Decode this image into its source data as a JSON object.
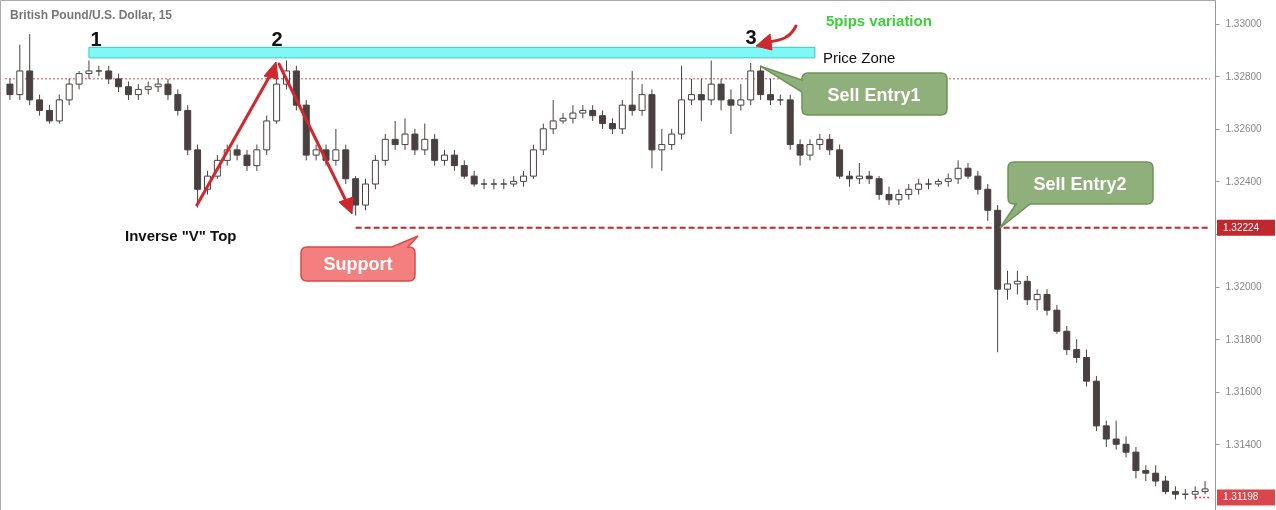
{
  "chart_data": {
    "type": "candlestick",
    "title": "British Pound/U.S. Dollar, 15",
    "categories": [
      null,
      null,
      null,
      null,
      null,
      null,
      null,
      null,
      null,
      null,
      null,
      null,
      null,
      null,
      null,
      null,
      null,
      null,
      null,
      null,
      null,
      null,
      null,
      null,
      null,
      null,
      null,
      null,
      null,
      null,
      null,
      null,
      null,
      null,
      null,
      null,
      null,
      null,
      null,
      null,
      null,
      null,
      null,
      null,
      null,
      null,
      null,
      null,
      null,
      null,
      null,
      null,
      null,
      null,
      null,
      null,
      null,
      null,
      null,
      null,
      null,
      null,
      null,
      null,
      null,
      null,
      null,
      null,
      null,
      null,
      null,
      null,
      null,
      null,
      null,
      null,
      null,
      null,
      null,
      null,
      null,
      null,
      null,
      null,
      null,
      null,
      null,
      null,
      null,
      null,
      null,
      null,
      null,
      null,
      null,
      null,
      null,
      null,
      null,
      null,
      null,
      null,
      null,
      null,
      null,
      null,
      null,
      null,
      null,
      null,
      null,
      null,
      null,
      null,
      null,
      null,
      null,
      null,
      null,
      null,
      null,
      null
    ],
    "series": [
      {
        "color": "#4a4040",
        "ohlc": [
          [
            1.3277,
            1.3279,
            1.3271,
            1.3273
          ],
          [
            1.3273,
            1.3292,
            1.3271,
            1.3282
          ],
          [
            1.3282,
            1.3296,
            1.3269,
            1.3271
          ],
          [
            1.3271,
            1.3273,
            1.3265,
            1.3267
          ],
          [
            1.3267,
            1.3269,
            1.3262,
            1.3263
          ],
          [
            1.3263,
            1.3273,
            1.3262,
            1.3271
          ],
          [
            1.3271,
            1.3279,
            1.3269,
            1.3277
          ],
          [
            1.3277,
            1.3282,
            1.3275,
            1.3281
          ],
          [
            1.3281,
            1.3286,
            1.3279,
            1.3282
          ],
          [
            1.3282,
            1.3284,
            1.328,
            1.3282
          ],
          [
            1.3282,
            1.3284,
            1.3277,
            1.3279
          ],
          [
            1.3279,
            1.3281,
            1.3274,
            1.3276
          ],
          [
            1.3276,
            1.3278,
            1.3271,
            1.3273
          ],
          [
            1.3273,
            1.3277,
            1.3271,
            1.3275
          ],
          [
            1.3275,
            1.3278,
            1.3273,
            1.3276
          ],
          [
            1.3276,
            1.3279,
            1.3274,
            1.3277
          ],
          [
            1.3277,
            1.3279,
            1.3271,
            1.3273
          ],
          [
            1.3273,
            1.3275,
            1.3265,
            1.3267
          ],
          [
            1.3267,
            1.3269,
            1.325,
            1.3252
          ],
          [
            1.3252,
            1.3254,
            1.323,
            1.3237
          ],
          [
            1.3237,
            1.3244,
            1.3235,
            1.3242
          ],
          [
            1.3242,
            1.325,
            1.3241,
            1.3248
          ],
          [
            1.3248,
            1.3254,
            1.3246,
            1.3252
          ],
          [
            1.3252,
            1.3254,
            1.3248,
            1.325
          ],
          [
            1.325,
            1.3252,
            1.3244,
            1.3246
          ],
          [
            1.3246,
            1.3254,
            1.3244,
            1.3252
          ],
          [
            1.3252,
            1.3265,
            1.325,
            1.3263
          ],
          [
            1.3263,
            1.3279,
            1.3262,
            1.3277
          ],
          [
            1.3277,
            1.3286,
            1.3275,
            1.3282
          ],
          [
            1.3282,
            1.3284,
            1.3267,
            1.3269
          ],
          [
            1.3269,
            1.3271,
            1.3248,
            1.325
          ],
          [
            1.325,
            1.3254,
            1.3248,
            1.3252
          ],
          [
            1.3252,
            1.3254,
            1.3246,
            1.3248
          ],
          [
            1.3248,
            1.326,
            1.3246,
            1.3252
          ],
          [
            1.3252,
            1.3254,
            1.3239,
            1.3241
          ],
          [
            1.3241,
            1.3242,
            1.3227,
            1.3231
          ],
          [
            1.3231,
            1.3241,
            1.3229,
            1.3239
          ],
          [
            1.3239,
            1.325,
            1.3237,
            1.3248
          ],
          [
            1.3248,
            1.3258,
            1.3246,
            1.3256
          ],
          [
            1.3256,
            1.3263,
            1.3252,
            1.3254
          ],
          [
            1.3254,
            1.3264,
            1.3252,
            1.3258
          ],
          [
            1.3258,
            1.326,
            1.325,
            1.3252
          ],
          [
            1.3252,
            1.3262,
            1.325,
            1.3256
          ],
          [
            1.3256,
            1.3258,
            1.3246,
            1.3248
          ],
          [
            1.3248,
            1.3252,
            1.3246,
            1.325
          ],
          [
            1.325,
            1.3252,
            1.3244,
            1.3246
          ],
          [
            1.3246,
            1.3248,
            1.3241,
            1.3242
          ],
          [
            1.3242,
            1.3244,
            1.3238,
            1.3239
          ],
          [
            1.3239,
            1.3241,
            1.3237,
            1.3239
          ],
          [
            1.3239,
            1.3241,
            1.3237,
            1.3239
          ],
          [
            1.3239,
            1.3241,
            1.3237,
            1.3239
          ],
          [
            1.3239,
            1.3242,
            1.3238,
            1.324
          ],
          [
            1.324,
            1.3244,
            1.3238,
            1.3242
          ],
          [
            1.3242,
            1.3254,
            1.3241,
            1.3252
          ],
          [
            1.3252,
            1.3262,
            1.325,
            1.326
          ],
          [
            1.326,
            1.3271,
            1.3258,
            1.3263
          ],
          [
            1.3263,
            1.3266,
            1.3262,
            1.3264
          ],
          [
            1.3264,
            1.3269,
            1.3262,
            1.3266
          ],
          [
            1.3266,
            1.3269,
            1.3264,
            1.3267
          ],
          [
            1.3267,
            1.3269,
            1.3263,
            1.3265
          ],
          [
            1.3265,
            1.3267,
            1.326,
            1.3262
          ],
          [
            1.3262,
            1.3264,
            1.3258,
            1.326
          ],
          [
            1.326,
            1.3271,
            1.3258,
            1.3269
          ],
          [
            1.3269,
            1.3282,
            1.3265,
            1.3267
          ],
          [
            1.3267,
            1.3277,
            1.3265,
            1.3273
          ],
          [
            1.3273,
            1.3275,
            1.3245,
            1.3252
          ],
          [
            1.3252,
            1.326,
            1.3244,
            1.3254
          ],
          [
            1.3254,
            1.326,
            1.3252,
            1.3258
          ],
          [
            1.3258,
            1.3284,
            1.3256,
            1.3271
          ],
          [
            1.3271,
            1.3279,
            1.3269,
            1.3273
          ],
          [
            1.3273,
            1.3279,
            1.3263,
            1.3271
          ],
          [
            1.3271,
            1.3286,
            1.3269,
            1.3277
          ],
          [
            1.3277,
            1.3279,
            1.3267,
            1.3271
          ],
          [
            1.3271,
            1.3275,
            1.3258,
            1.3269
          ],
          [
            1.3269,
            1.3277,
            1.3267,
            1.3271
          ],
          [
            1.3271,
            1.3285,
            1.3269,
            1.3282
          ],
          [
            1.3282,
            1.3284,
            1.3271,
            1.3273
          ],
          [
            1.3273,
            1.3279,
            1.3269,
            1.3271
          ],
          [
            1.3271,
            1.3273,
            1.3269,
            1.3271
          ],
          [
            1.3271,
            1.3273,
            1.3252,
            1.3254
          ],
          [
            1.3254,
            1.3256,
            1.3246,
            1.325
          ],
          [
            1.325,
            1.3256,
            1.3248,
            1.3254
          ],
          [
            1.3254,
            1.3258,
            1.3252,
            1.3256
          ],
          [
            1.3256,
            1.3258,
            1.325,
            1.3252
          ],
          [
            1.3252,
            1.3254,
            1.3241,
            1.3242
          ],
          [
            1.3242,
            1.3244,
            1.3238,
            1.3241
          ],
          [
            1.3241,
            1.3247,
            1.3239,
            1.3242
          ],
          [
            1.3242,
            1.3244,
            1.3239,
            1.3241
          ],
          [
            1.3241,
            1.3242,
            1.3233,
            1.3235
          ],
          [
            1.3235,
            1.3238,
            1.3231,
            1.3233
          ],
          [
            1.3233,
            1.3237,
            1.3231,
            1.3235
          ],
          [
            1.3235,
            1.3239,
            1.3233,
            1.3237
          ],
          [
            1.3237,
            1.3241,
            1.3235,
            1.3239
          ],
          [
            1.3239,
            1.3241,
            1.3237,
            1.3239
          ],
          [
            1.3239,
            1.3241,
            1.3238,
            1.324
          ],
          [
            1.324,
            1.3243,
            1.3238,
            1.3241
          ],
          [
            1.3241,
            1.3248,
            1.3239,
            1.3245
          ],
          [
            1.3245,
            1.3247,
            1.3241,
            1.3242
          ],
          [
            1.3242,
            1.3244,
            1.3235,
            1.3237
          ],
          [
            1.3237,
            1.3239,
            1.3225,
            1.3229
          ],
          [
            1.3229,
            1.3231,
            1.3175,
            1.3199
          ],
          [
            1.3199,
            1.3206,
            1.3195,
            1.3201
          ],
          [
            1.3201,
            1.3206,
            1.3197,
            1.3202
          ],
          [
            1.3202,
            1.3204,
            1.3193,
            1.3195
          ],
          [
            1.3195,
            1.3199,
            1.3191,
            1.3197
          ],
          [
            1.3197,
            1.3199,
            1.3189,
            1.3191
          ],
          [
            1.3191,
            1.3193,
            1.3182,
            1.3183
          ],
          [
            1.3183,
            1.3185,
            1.3174,
            1.3176
          ],
          [
            1.3176,
            1.318,
            1.3171,
            1.3173
          ],
          [
            1.3173,
            1.3176,
            1.3162,
            1.3164
          ],
          [
            1.3164,
            1.3166,
            1.3145,
            1.3147
          ],
          [
            1.3147,
            1.3149,
            1.3139,
            1.3142
          ],
          [
            1.3142,
            1.3149,
            1.3138,
            1.314
          ],
          [
            1.314,
            1.3143,
            1.3135,
            1.3137
          ],
          [
            1.3137,
            1.3139,
            1.3127,
            1.313
          ],
          [
            1.313,
            1.3132,
            1.3126,
            1.3129
          ],
          [
            1.3129,
            1.3132,
            1.3124,
            1.3126
          ],
          [
            1.3126,
            1.3128,
            1.3121,
            1.3122
          ],
          [
            1.3122,
            1.3124,
            1.3119,
            1.3121
          ],
          [
            1.3121,
            1.3123,
            1.3119,
            1.3121
          ],
          [
            1.3121,
            1.3124,
            1.3119,
            1.3122
          ],
          [
            1.3122,
            1.3126,
            1.3121,
            1.3123
          ]
        ]
      }
    ],
    "ylim": [
      1.3115,
      1.3309
    ],
    "yticks": [
      {
        "value": 1.314,
        "label": "1.31400"
      },
      {
        "value": 1.316,
        "label": "1.31600"
      },
      {
        "value": 1.318,
        "label": "1.31800"
      },
      {
        "value": 1.32,
        "label": "1.32000"
      },
      {
        "value": 1.322,
        "label": null
      },
      {
        "value": 1.324,
        "label": "1.32400"
      },
      {
        "value": 1.326,
        "label": "1.32600"
      },
      {
        "value": 1.328,
        "label": "1.32800"
      },
      {
        "value": 1.33,
        "label": "1.33000"
      }
    ],
    "ref_lines": [
      {
        "axis": "y",
        "value": 1.32224,
        "label": "1.32224",
        "color": "#c0282d",
        "line_style": "dashed"
      },
      {
        "axis": "y",
        "value": 1.3279,
        "label": null,
        "color": "#e08a8a",
        "line_style": "dotted"
      },
      {
        "axis": "y",
        "value": 1.31198,
        "label": "1.31198",
        "color": "#d9464b",
        "line_style": "dotted"
      }
    ],
    "bands": [
      {
        "axis": "y",
        "from": 1.3287,
        "to": 1.3291,
        "label": "Price Zone",
        "color": "#80f8f6"
      }
    ],
    "annotations": [
      "1",
      "2",
      "3",
      "5pips variation",
      "Inverse \"V\" Top",
      "Support",
      "Sell Entry1",
      "Sell Entry2"
    ]
  }
}
